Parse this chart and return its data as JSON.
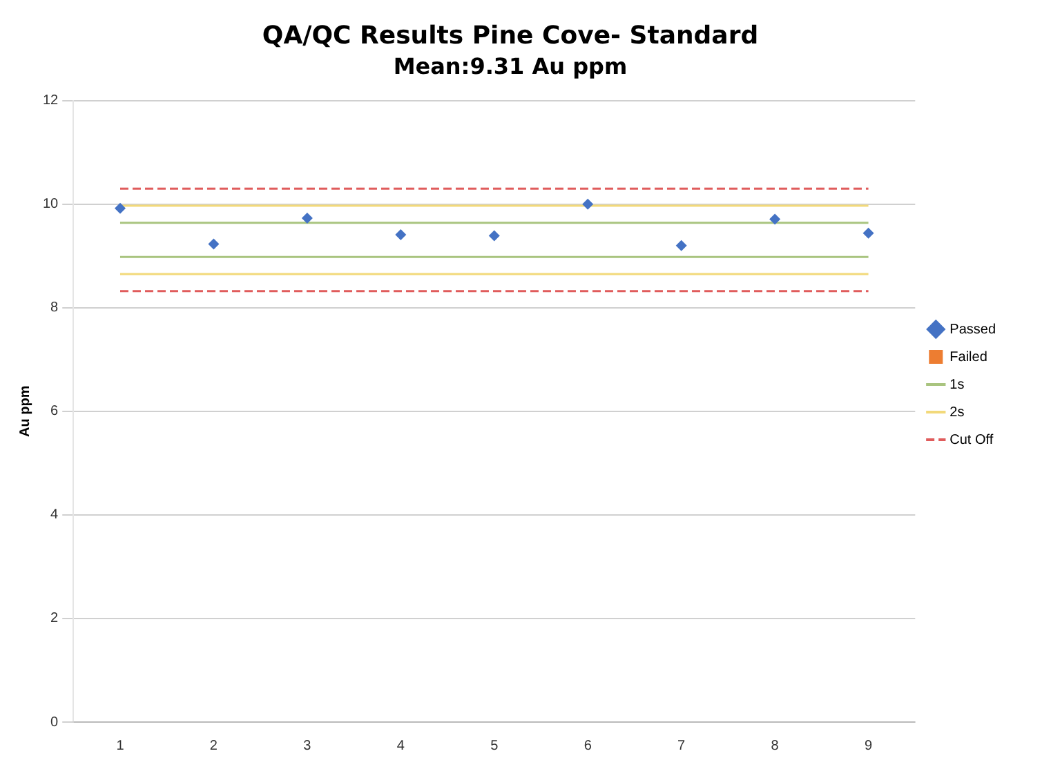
{
  "chart_data": {
    "type": "scatter",
    "title": "QA/QC Results Pine Cove- Standard",
    "subtitle": "Mean:9.31 Au ppm",
    "ylabel": "Au ppm",
    "categories": [
      "1",
      "2",
      "3",
      "4",
      "5",
      "6",
      "7",
      "8",
      "9"
    ],
    "series": [
      {
        "name": "Passed",
        "type": "scatter",
        "marker": "diamond",
        "color": "#4472c4",
        "values": [
          9.92,
          9.23,
          9.73,
          9.41,
          9.39,
          10.0,
          9.2,
          9.71,
          9.44
        ]
      },
      {
        "name": "Failed",
        "type": "scatter",
        "marker": "square",
        "color": "#ed7d31",
        "values": [
          null,
          null,
          null,
          null,
          null,
          null,
          null,
          null,
          null
        ]
      },
      {
        "name": "1s",
        "type": "line",
        "marker": "none",
        "line_style": "solid",
        "color": "#a9c47f",
        "values": [
          9.64,
          9.64,
          9.64,
          9.64,
          9.64,
          9.64,
          9.64,
          9.64,
          9.64
        ]
      },
      {
        "type": "line",
        "marker": "none",
        "line_style": "solid",
        "color": "#a9c47f",
        "values": [
          8.98,
          8.98,
          8.98,
          8.98,
          8.98,
          8.98,
          8.98,
          8.98,
          8.98
        ]
      },
      {
        "name": "2s",
        "type": "line",
        "marker": "none",
        "line_style": "solid",
        "color": "#f2d97a",
        "values": [
          9.97,
          9.97,
          9.97,
          9.97,
          9.97,
          9.97,
          9.97,
          9.97,
          9.97
        ]
      },
      {
        "type": "line",
        "marker": "none",
        "line_style": "solid",
        "color": "#f2d97a",
        "values": [
          8.65,
          8.65,
          8.65,
          8.65,
          8.65,
          8.65,
          8.65,
          8.65,
          8.65
        ]
      },
      {
        "name": "Cut Off",
        "type": "line",
        "marker": "none",
        "line_style": "dashed",
        "color": "#e05c5c",
        "values": [
          10.3,
          10.3,
          10.3,
          10.3,
          10.3,
          10.3,
          10.3,
          10.3,
          10.3
        ]
      },
      {
        "type": "line",
        "marker": "none",
        "line_style": "dashed",
        "color": "#e05c5c",
        "values": [
          8.32,
          8.32,
          8.32,
          8.32,
          8.32,
          8.32,
          8.32,
          8.32,
          8.32
        ]
      }
    ],
    "ylim": [
      0,
      12
    ],
    "yticks": [
      0,
      2,
      4,
      6,
      8,
      10,
      12
    ],
    "grid": "y",
    "legend": "right"
  }
}
